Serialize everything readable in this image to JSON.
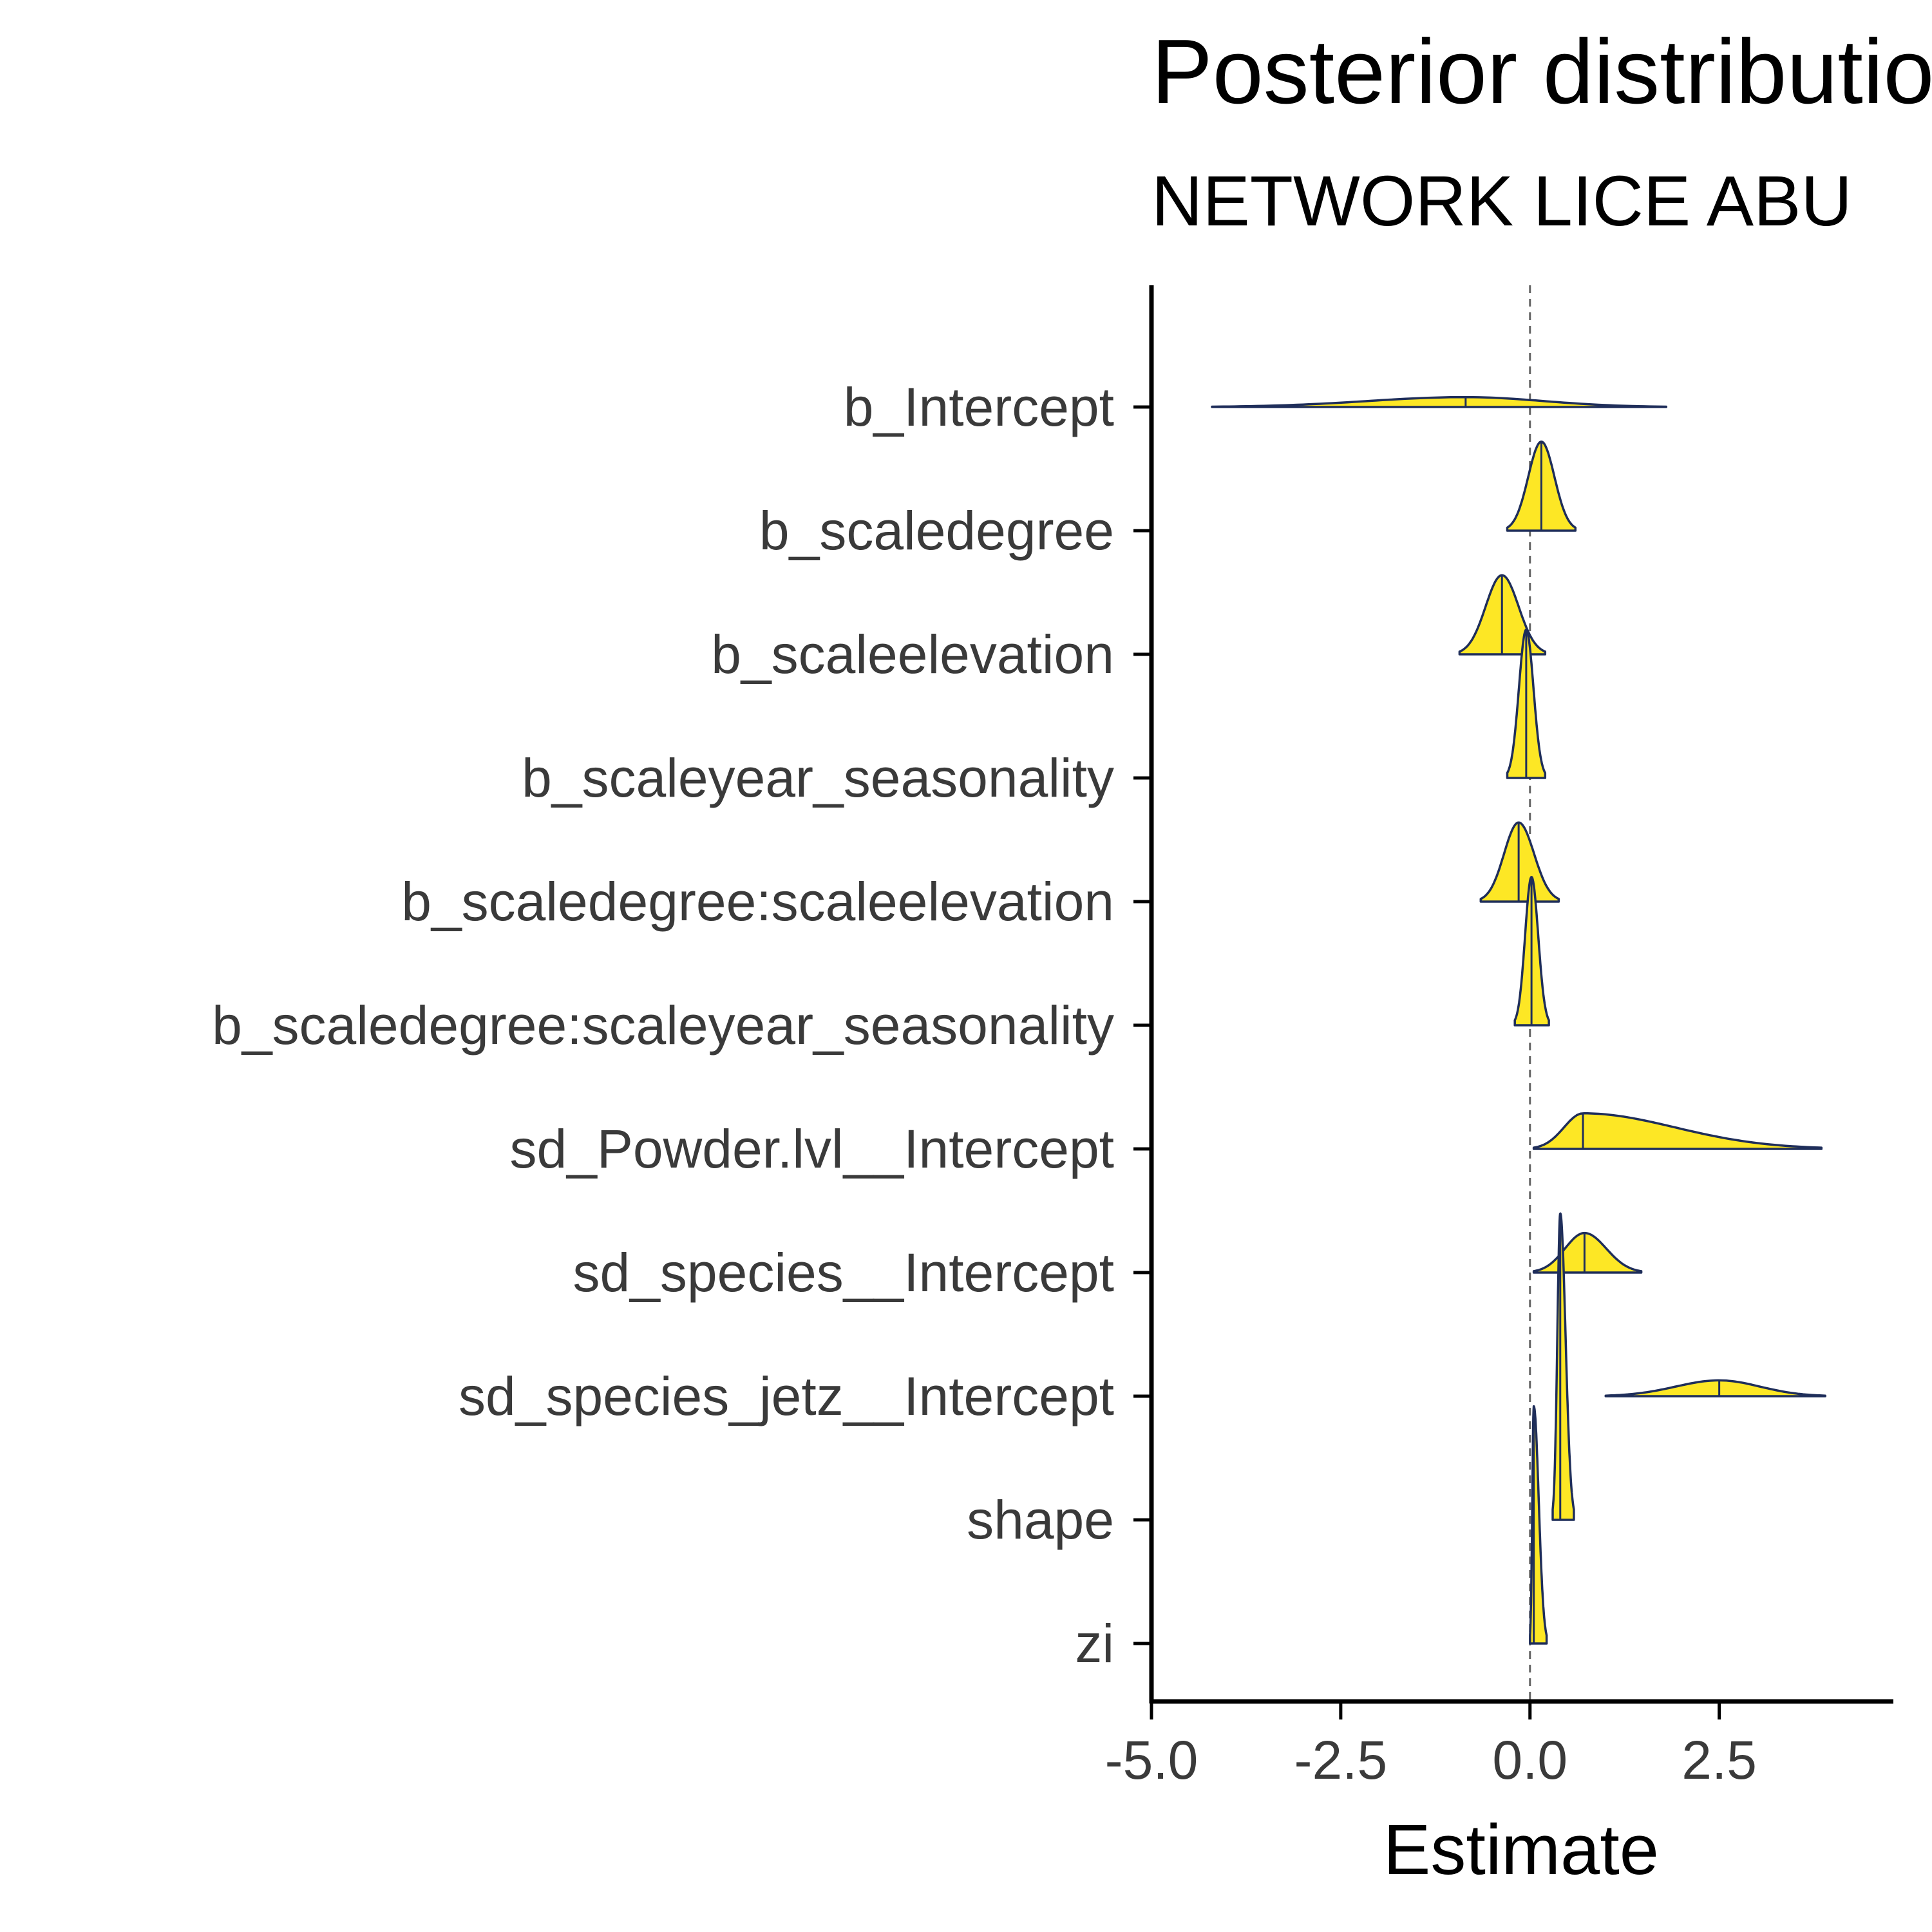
{
  "chart_data": {
    "type": "ridgeline",
    "title": "Posterior distributio",
    "subtitle": "NETWORK LICE ABU",
    "xlabel": "Estimate",
    "ylabel": "",
    "xlim": [
      -5.0,
      4.8
    ],
    "x_ticks": [
      -5.0,
      -2.5,
      0.0,
      2.5
    ],
    "x_tick_labels": [
      "-5.0",
      "-2.5",
      "0.0",
      "2.5"
    ],
    "reference_line_x": 0.0,
    "grid": false,
    "fill_color": "#FDE725",
    "outline_color": "#1f2e5a",
    "parameters": [
      {
        "label": "b_Intercept",
        "min": -4.2,
        "median": -0.85,
        "max": 1.8,
        "peak_height": 0.05
      },
      {
        "label": "b_scaledegree",
        "min": -0.3,
        "median": 0.15,
        "max": 0.6,
        "peak_height": 0.45
      },
      {
        "label": "b_scaleelevation",
        "min": -0.93,
        "median": -0.37,
        "max": 0.2,
        "peak_height": 0.4
      },
      {
        "label": "b_scaleyear_seasonality",
        "min": -0.3,
        "median": -0.05,
        "max": 0.2,
        "peak_height": 0.75
      },
      {
        "label": "b_scaledegree:scaleelevation",
        "min": -0.65,
        "median": -0.15,
        "max": 0.38,
        "peak_height": 0.4
      },
      {
        "label": "b_scaledegree:scaleyear_seasonality",
        "min": -0.2,
        "median": 0.02,
        "max": 0.25,
        "peak_height": 0.75
      },
      {
        "label": "sd_Powder.lvl__Intercept",
        "min": 0.05,
        "median": 0.7,
        "max": 3.85,
        "peak_height": 0.18
      },
      {
        "label": "sd_species__Intercept",
        "min": 0.05,
        "median": 0.72,
        "max": 1.47,
        "peak_height": 0.2
      },
      {
        "label": "sd_species_jetz__Intercept",
        "min": 1.0,
        "median": 2.5,
        "max": 3.9,
        "peak_height": 0.08
      },
      {
        "label": "shape",
        "min": 0.3,
        "median": 0.4,
        "max": 0.58,
        "peak_height": 1.55
      },
      {
        "label": "zi",
        "min": 0.0,
        "median": 0.05,
        "max": 0.22,
        "peak_height": 1.2
      }
    ]
  }
}
